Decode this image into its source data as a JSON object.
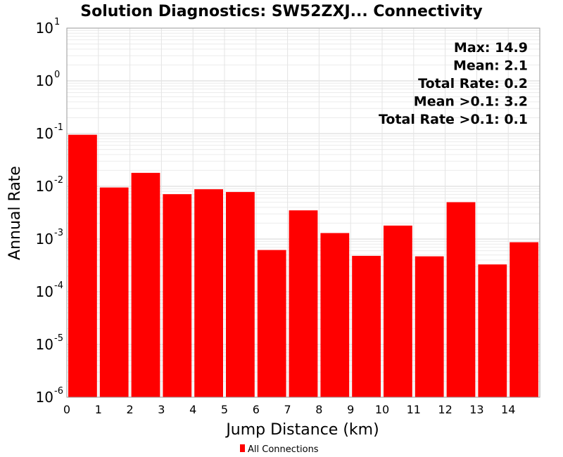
{
  "chart_data": {
    "type": "bar",
    "title": "Solution Diagnostics: SW52ZXJ... Connectivity",
    "xlabel": "Jump Distance (km)",
    "ylabel": "Annual Rate",
    "y_scale": "log",
    "ylim": [
      1e-06,
      10
    ],
    "y_ticks": [
      {
        "base": "10",
        "exp": "1",
        "value": 10
      },
      {
        "base": "10",
        "exp": "0",
        "value": 1
      },
      {
        "base": "10",
        "exp": "-1",
        "value": 0.1
      },
      {
        "base": "10",
        "exp": "-2",
        "value": 0.01
      },
      {
        "base": "10",
        "exp": "-3",
        "value": 0.001
      },
      {
        "base": "10",
        "exp": "-4",
        "value": 0.0001
      },
      {
        "base": "10",
        "exp": "-5",
        "value": 1e-05
      },
      {
        "base": "10",
        "exp": "-6",
        "value": 1e-06
      }
    ],
    "xlim": [
      0,
      15
    ],
    "x_ticks": [
      "0",
      "1",
      "2",
      "3",
      "4",
      "5",
      "6",
      "7",
      "8",
      "9",
      "10",
      "11",
      "12",
      "13",
      "14"
    ],
    "bars": [
      {
        "x": 0.5,
        "value": 0.095
      },
      {
        "x": 1.5,
        "value": 0.0095
      },
      {
        "x": 2.5,
        "value": 0.018
      },
      {
        "x": 3.5,
        "value": 0.0071
      },
      {
        "x": 4.5,
        "value": 0.0088
      },
      {
        "x": 5.5,
        "value": 0.0078
      },
      {
        "x": 6.5,
        "value": 0.00062
      },
      {
        "x": 7.5,
        "value": 0.0035
      },
      {
        "x": 8.5,
        "value": 0.0013
      },
      {
        "x": 9.5,
        "value": 0.00048
      },
      {
        "x": 10.5,
        "value": 0.0018
      },
      {
        "x": 11.5,
        "value": 0.00047
      },
      {
        "x": 12.5,
        "value": 0.005
      },
      {
        "x": 13.5,
        "value": 0.00033
      },
      {
        "x": 14.5,
        "value": 0.00087
      }
    ],
    "annotations": [
      "Max: 14.9",
      "Mean: 2.1",
      "Total Rate: 0.2",
      "Mean >0.1: 3.2",
      "Total Rate >0.1: 0.1"
    ],
    "legend": [
      {
        "name": "All Connections",
        "color": "#ff0000"
      }
    ],
    "legend_position": "bottom-center",
    "bar_color": "#ff0000",
    "grid": true
  }
}
